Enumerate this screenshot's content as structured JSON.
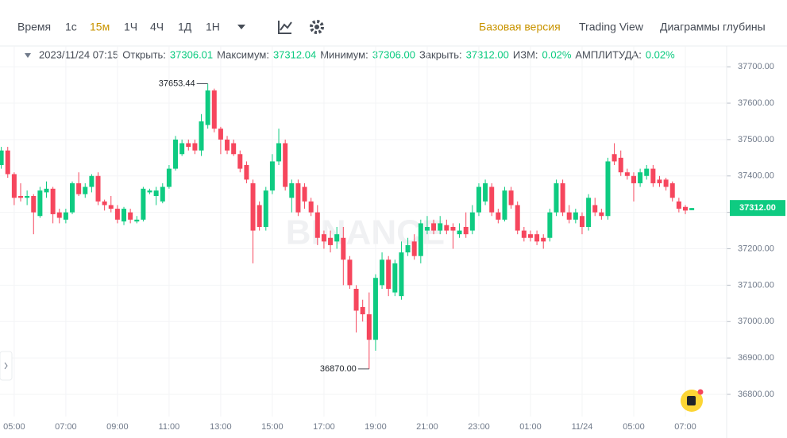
{
  "toolbar": {
    "left": [
      "Время",
      "1с",
      "15м",
      "1Ч",
      "4Ч",
      "1Д",
      "1Н"
    ],
    "right": [
      "Базовая версия",
      "Trading View",
      "Диаграммы глубины"
    ]
  },
  "info": {
    "time": "2023/11/24 07:15",
    "fields": [
      {
        "label": "Открыть:",
        "value": "37306.01"
      },
      {
        "label": "Максимум:",
        "value": "37312.04"
      },
      {
        "label": "Минимум:",
        "value": "37306.00"
      },
      {
        "label": "Закрыть:",
        "value": "37312.00"
      },
      {
        "label": "ИЗМ:",
        "value": "0.02%"
      },
      {
        "label": "АМПЛИТУДА:",
        "value": "0.02%"
      }
    ]
  },
  "chart_data": {
    "type": "candlestick",
    "watermark": "BINANCE",
    "up_color": "#0ecb81",
    "down_color": "#f6465d",
    "grid": true,
    "xlim": [
      -0.2,
      112.4
    ],
    "xticks": [
      {
        "value": 2,
        "label": "05:00"
      },
      {
        "value": 10,
        "label": "07:00"
      },
      {
        "value": 18,
        "label": "09:00"
      },
      {
        "value": 26,
        "label": "11:00"
      },
      {
        "value": 34,
        "label": "13:00"
      },
      {
        "value": 42,
        "label": "15:00"
      },
      {
        "value": 50,
        "label": "17:00"
      },
      {
        "value": 58,
        "label": "19:00"
      },
      {
        "value": 66,
        "label": "21:00"
      },
      {
        "value": 74,
        "label": "23:00"
      },
      {
        "value": 82,
        "label": "01:00"
      },
      {
        "value": 90,
        "label": "11/24"
      },
      {
        "value": 98,
        "label": "05:00"
      },
      {
        "value": 106,
        "label": "07:00"
      }
    ],
    "ylim": [
      36739,
      37757
    ],
    "yticks": [
      {
        "value": 36800,
        "label": "36800.00"
      },
      {
        "value": 36900,
        "label": "36900.00"
      },
      {
        "value": 37000,
        "label": "37000.00"
      },
      {
        "value": 37100,
        "label": "37100.00"
      },
      {
        "value": 37200,
        "label": "37200.00"
      },
      {
        "value": 37300,
        "label": "37300.00"
      },
      {
        "value": 37400,
        "label": "37400.00"
      },
      {
        "value": 37500,
        "label": "37500.00"
      },
      {
        "value": 37600,
        "label": "37600.00"
      },
      {
        "value": 37700,
        "label": "37700.00"
      }
    ],
    "open": [
      37430,
      37470,
      37405,
      37345,
      37340,
      37345,
      37290,
      37355,
      37365,
      37300,
      37280,
      37300,
      37380,
      37350,
      37370,
      37400,
      37330,
      37320,
      37310,
      37275,
      37300,
      37275,
      37280,
      37355,
      37345,
      37330,
      37370,
      37420,
      37460,
      37490,
      37490,
      37470,
      37540,
      37635,
      37530,
      37500,
      37490,
      37460,
      37430,
      37380,
      37320,
      37260,
      37360,
      37440,
      37490,
      37340,
      37380,
      37370,
      37330,
      37300,
      37240,
      37230,
      37220,
      37230,
      37170,
      37090,
      37040,
      37020,
      36950,
      37100,
      37170,
      37080,
      37070,
      37190,
      37220,
      37180,
      37250,
      37270,
      37250,
      37265,
      37260,
      37240,
      37260,
      37250,
      37300,
      37330,
      37370,
      37300,
      37280,
      37360,
      37320,
      37250,
      37240,
      37240,
      37230,
      37230,
      37300,
      37380,
      37300,
      37280,
      37290,
      37260,
      37320,
      37300,
      37290,
      37460,
      37450,
      37410,
      37400,
      37380,
      37400,
      37420,
      37390,
      37390,
      37380,
      37330,
      37315,
      37306.01
    ],
    "high": [
      37480,
      37480,
      37410,
      37380,
      37360,
      37350,
      37370,
      37385,
      37370,
      37310,
      37310,
      37385,
      37410,
      37380,
      37405,
      37410,
      37335,
      37345,
      37320,
      37315,
      37310,
      37290,
      37370,
      37365,
      37370,
      37380,
      37430,
      37510,
      37500,
      37500,
      37500,
      37570,
      37653.44,
      37640,
      37535,
      37510,
      37500,
      37470,
      37440,
      37390,
      37330,
      37370,
      37460,
      37530,
      37500,
      37390,
      37390,
      37380,
      37340,
      37320,
      37250,
      37250,
      37260,
      37260,
      37180,
      37100,
      37060,
      37080,
      37130,
      37190,
      37180,
      37170,
      37220,
      37230,
      37240,
      37280,
      37290,
      37280,
      37290,
      37280,
      37270,
      37270,
      37300,
      37320,
      37380,
      37390,
      37380,
      37310,
      37370,
      37370,
      37330,
      37260,
      37250,
      37250,
      37240,
      37310,
      37390,
      37390,
      37320,
      37310,
      37300,
      37350,
      37340,
      37310,
      37450,
      37490,
      37470,
      37420,
      37410,
      37420,
      37430,
      37430,
      37400,
      37395,
      37385,
      37340,
      37320,
      37312.04
    ],
    "low": [
      37420,
      37395,
      37320,
      37330,
      37320,
      37240,
      37285,
      37340,
      37270,
      37270,
      37270,
      37295,
      37345,
      37340,
      37355,
      37320,
      37305,
      37300,
      37270,
      37265,
      37270,
      37270,
      37275,
      37350,
      37320,
      37325,
      37365,
      37415,
      37455,
      37470,
      37460,
      37455,
      37530,
      37520,
      37460,
      37460,
      37455,
      37410,
      37380,
      37160,
      37250,
      37250,
      37350,
      37430,
      37360,
      37300,
      37290,
      37310,
      37290,
      37210,
      37200,
      37190,
      37200,
      37100,
      37090,
      36970,
      37000,
      36870,
      36920,
      37090,
      37070,
      37070,
      37060,
      37180,
      37170,
      37160,
      37240,
      37240,
      37240,
      37240,
      37200,
      37230,
      37230,
      37240,
      37290,
      37320,
      37290,
      37270,
      37275,
      37310,
      37240,
      37220,
      37220,
      37210,
      37200,
      37220,
      37290,
      37290,
      37270,
      37270,
      37240,
      37250,
      37290,
      37280,
      37280,
      37430,
      37400,
      37390,
      37330,
      37370,
      37390,
      37370,
      37370,
      37360,
      37330,
      37300,
      37295,
      37306.0
    ],
    "close": [
      37470,
      37405,
      37340,
      37340,
      37345,
      37300,
      37360,
      37365,
      37295,
      37285,
      37300,
      37380,
      37350,
      37370,
      37400,
      37330,
      37320,
      37310,
      37280,
      37310,
      37280,
      37280,
      37365,
      37360,
      37360,
      37370,
      37420,
      37500,
      37490,
      37480,
      37470,
      37550,
      37635,
      37530,
      37500,
      37470,
      37460,
      37420,
      37390,
      37250,
      37260,
      37360,
      37440,
      37490,
      37370,
      37380,
      37300,
      37330,
      37300,
      37230,
      37220,
      37210,
      37240,
      37170,
      37100,
      37030,
      37020,
      36950,
      37120,
      37170,
      37090,
      37160,
      37190,
      37210,
      37180,
      37270,
      37260,
      37250,
      37270,
      37250,
      37250,
      37250,
      37240,
      37300,
      37370,
      37380,
      37300,
      37280,
      37360,
      37320,
      37250,
      37230,
      37230,
      37220,
      37220,
      37300,
      37380,
      37300,
      37280,
      37300,
      37260,
      37340,
      37300,
      37290,
      37440,
      37440,
      37410,
      37400,
      37380,
      37410,
      37420,
      37380,
      37380,
      37370,
      37340,
      37310,
      37305,
      37312.0
    ],
    "annotations": [
      {
        "value": 37653.44,
        "label": "37653.44"
      },
      {
        "value": 36870,
        "label": "36870.00"
      }
    ],
    "current_price": {
      "value": 37312,
      "label": "37312.00"
    }
  }
}
